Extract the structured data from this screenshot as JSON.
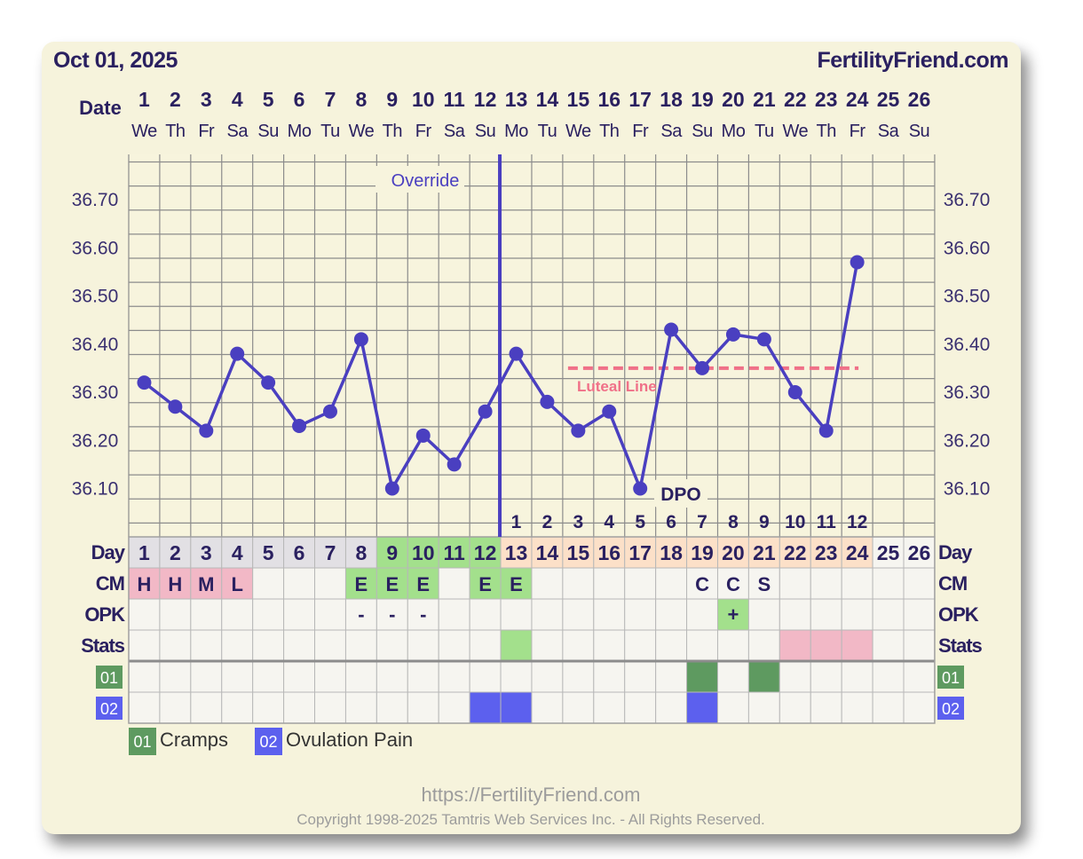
{
  "header": {
    "date": "Oct 01, 2025",
    "brand": "FertilityFriend.com"
  },
  "chart_data": {
    "type": "line",
    "title": "",
    "xlabel": "Date",
    "ylabel": "",
    "ylim": [
      36.03,
      36.79
    ],
    "y_ticks": [
      "36.70",
      "36.60",
      "36.50",
      "36.40",
      "36.30",
      "36.20",
      "36.10"
    ],
    "dates": [
      "1",
      "2",
      "3",
      "4",
      "5",
      "6",
      "7",
      "8",
      "9",
      "10",
      "11",
      "12",
      "13",
      "14",
      "15",
      "16",
      "17",
      "18",
      "19",
      "20",
      "21",
      "22",
      "23",
      "24",
      "25",
      "26"
    ],
    "weekdays": [
      "We",
      "Th",
      "Fr",
      "Sa",
      "Su",
      "Mo",
      "Tu",
      "We",
      "Th",
      "Fr",
      "Sa",
      "Su",
      "Mo",
      "Tu",
      "We",
      "Th",
      "Fr",
      "Sa",
      "Su",
      "Mo",
      "Tu",
      "We",
      "Th",
      "Fr",
      "Sa",
      "Su"
    ],
    "series": [
      {
        "values": [
          36.32,
          36.27,
          36.22,
          36.38,
          36.32,
          36.23,
          36.26,
          36.41,
          36.1,
          36.21,
          36.15,
          36.26,
          36.38,
          36.28,
          36.22,
          36.26,
          36.1,
          36.43,
          36.35,
          36.42,
          36.41,
          36.3,
          36.22,
          36.57,
          null,
          null
        ],
        "color": "#4a3fc0"
      }
    ],
    "coverline": {
      "value": 36.35,
      "from_day": 15,
      "to_day": 24,
      "label": "Luteal Line",
      "color": "#f07088"
    },
    "override_line": {
      "day": 12,
      "label": "Override",
      "color": "#4a3fc0"
    },
    "dpo": {
      "label": "DPO",
      "start_day": 13,
      "values": [
        "1",
        "2",
        "3",
        "4",
        "5",
        "6",
        "7",
        "8",
        "9",
        "10",
        "11",
        "12"
      ]
    },
    "rows": {
      "day_label": "Day",
      "day_values": [
        "1",
        "2",
        "3",
        "4",
        "5",
        "6",
        "7",
        "8",
        "9",
        "10",
        "11",
        "12",
        "13",
        "14",
        "15",
        "16",
        "17",
        "18",
        "19",
        "20",
        "21",
        "22",
        "23",
        "24",
        "25",
        "26"
      ],
      "day_colors": [
        "#e2e0e4",
        "#e2e0e4",
        "#e2e0e4",
        "#e2e0e4",
        "#e2e0e4",
        "#e2e0e4",
        "#e2e0e4",
        "#e2e0e4",
        "#a3e08c",
        "#a3e08c",
        "#a3e08c",
        "#a3e08c",
        "#fce0c8",
        "#fce0c8",
        "#fce0c8",
        "#fce0c8",
        "#fce0c8",
        "#fce0c8",
        "#fce0c8",
        "#fce0c8",
        "#fce0c8",
        "#fce0c8",
        "#fce0c8",
        "#fce0c8",
        "#f6f5f0",
        "#f6f5f0"
      ],
      "cm_label": "CM",
      "cm_values": [
        "H",
        "H",
        "M",
        "L",
        "",
        "",
        "",
        "E",
        "E",
        "E",
        "",
        "E",
        "E",
        "",
        "",
        "",
        "",
        "",
        "C",
        "C",
        "S",
        "",
        "",
        "",
        "",
        ""
      ],
      "cm_colors": [
        "#f2b8c6",
        "#f2b8c6",
        "#f2b8c6",
        "#f2b8c6",
        "",
        "",
        "",
        "#a3e08c",
        "#a3e08c",
        "#a3e08c",
        "",
        "#a3e08c",
        "#a3e08c",
        "",
        "",
        "",
        "",
        "",
        "",
        "",
        "",
        "",
        "",
        "",
        "",
        ""
      ],
      "opk_label": "OPK",
      "opk_values": [
        "",
        "",
        "",
        "",
        "",
        "",
        "",
        "-",
        "-",
        "-",
        "",
        "",
        "",
        "",
        "",
        "",
        "",
        "",
        "",
        "+",
        "",
        "",
        "",
        "",
        "",
        ""
      ],
      "opk_colors": [
        "",
        "",
        "",
        "",
        "",
        "",
        "",
        "",
        "",
        "",
        "",
        "",
        "",
        "",
        "",
        "",
        "",
        "",
        "",
        "#a3e08c",
        "",
        "",
        "",
        "",
        "",
        ""
      ],
      "stats_label": "Stats",
      "stats_colors": [
        "",
        "",
        "",
        "",
        "",
        "",
        "",
        "",
        "",
        "",
        "",
        "",
        "#a3e08c",
        "",
        "",
        "",
        "",
        "",
        "",
        "",
        "",
        "#f2b8c6",
        "#f2b8c6",
        "#f2b8c6",
        "",
        ""
      ]
    },
    "symptoms": [
      {
        "code": "01",
        "name": "Cramps",
        "color": "#5e9a60",
        "days": [
          19,
          21
        ]
      },
      {
        "code": "02",
        "name": "Ovulation Pain",
        "color": "#5c60ee",
        "days": [
          12,
          13,
          19
        ]
      }
    ]
  },
  "footer": {
    "url": "https://FertilityFriend.com",
    "copyright": "Copyright 1998-2025 Tamtris Web Services Inc. - All Rights Reserved."
  }
}
